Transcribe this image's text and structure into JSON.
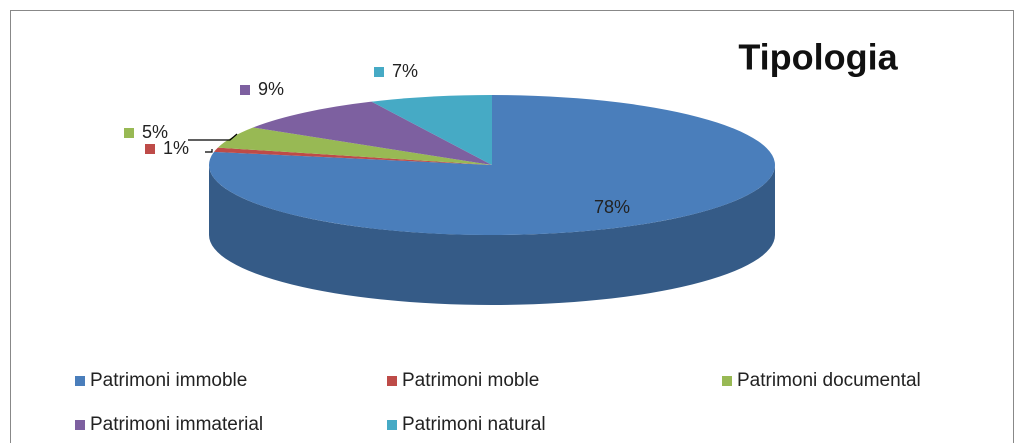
{
  "chart_data": {
    "type": "pie3d",
    "title": "Tipologia",
    "categories": [
      "Patrimoni immoble",
      "Patrimoni moble",
      "Patrimoni documental",
      "Patrimoni immaterial",
      "Patrimoni natural"
    ],
    "values": [
      78,
      1,
      5,
      9,
      7
    ],
    "value_labels": [
      "78%",
      "1%",
      "5%",
      "9%",
      "7%"
    ],
    "colors": [
      "#4a7ebb",
      "#be4b48",
      "#98b954",
      "#7d60a0",
      "#46aac5"
    ],
    "legend": "bottom"
  }
}
